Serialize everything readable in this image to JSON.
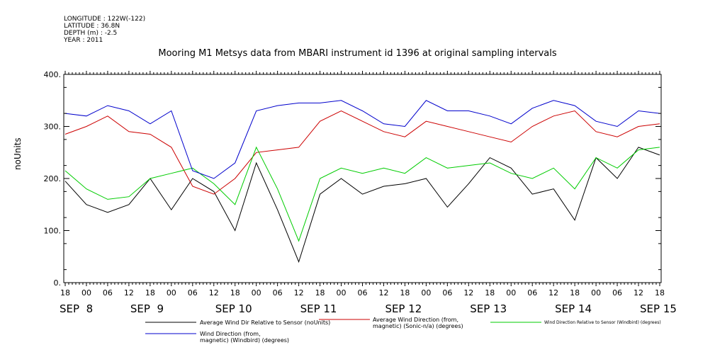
{
  "header": {
    "longitude": "LONGITUDE : 122W(-122)",
    "latitude": "LATITUDE : 36.8N",
    "depth": "DEPTH (m) : -2.5",
    "year": "YEAR : 2011"
  },
  "chart_data": {
    "type": "line",
    "title": "Mooring M1 Metsys data from MBARI instrument id 1396 at original sampling intervals",
    "ylabel": "noUnits",
    "ylim": [
      0,
      400
    ],
    "yticks": [
      0,
      100,
      200,
      300,
      400
    ],
    "ytick_labels": [
      "0.",
      "100.",
      "200.",
      "300.",
      "400."
    ],
    "xlim_hours": [
      0,
      168
    ],
    "hour_tick_labels": [
      "18",
      "00",
      "06",
      "12",
      "18",
      "00",
      "06",
      "12",
      "18",
      "00",
      "06",
      "12",
      "18",
      "00",
      "06",
      "12",
      "18",
      "00",
      "06",
      "12",
      "18",
      "00",
      "06",
      "12",
      "18",
      "00",
      "06",
      "12",
      "18"
    ],
    "day_labels": [
      "SEP  8",
      "SEP  9",
      "SEP 10",
      "SEP 11",
      "SEP 12",
      "SEP 13",
      "SEP 14",
      "SEP 15"
    ],
    "grid": false,
    "legend_position": "bottom",
    "series": [
      {
        "name": "Average Wind Dir Relative to Sensor (noUnits)",
        "color": "#000000",
        "x": [
          0,
          6,
          12,
          18,
          24,
          30,
          36,
          42,
          48,
          54,
          60,
          66,
          72,
          78,
          84,
          90,
          96,
          102,
          108,
          114,
          120,
          126,
          132,
          138,
          144,
          150,
          156,
          162,
          168
        ],
        "y": [
          195,
          150,
          135,
          150,
          200,
          140,
          200,
          175,
          100,
          230,
          140,
          40,
          170,
          200,
          170,
          185,
          190,
          200,
          145,
          190,
          240,
          220,
          170,
          180,
          120,
          240,
          200,
          260,
          245
        ]
      },
      {
        "name": "Average Wind Direction (from, magnetic) (Sonic-n/a) (degrees)",
        "color": "#cc0000",
        "x": [
          0,
          6,
          12,
          18,
          24,
          30,
          36,
          42,
          48,
          54,
          60,
          66,
          72,
          78,
          84,
          90,
          96,
          102,
          108,
          114,
          120,
          126,
          132,
          138,
          144,
          150,
          156,
          162,
          168
        ],
        "y": [
          285,
          300,
          320,
          290,
          285,
          260,
          185,
          170,
          200,
          250,
          255,
          260,
          310,
          330,
          310,
          290,
          280,
          310,
          300,
          290,
          280,
          270,
          300,
          320,
          330,
          290,
          280,
          300,
          305
        ]
      },
      {
        "name": "Wind Direction Relative to Sensor (Windbird) (degrees)",
        "color": "#00cc00",
        "x": [
          0,
          6,
          12,
          18,
          24,
          30,
          36,
          42,
          48,
          54,
          60,
          66,
          72,
          78,
          84,
          90,
          96,
          102,
          108,
          114,
          120,
          126,
          132,
          138,
          144,
          150,
          156,
          162,
          168
        ],
        "y": [
          215,
          180,
          160,
          165,
          200,
          210,
          220,
          190,
          150,
          260,
          180,
          80,
          200,
          220,
          210,
          220,
          210,
          240,
          220,
          225,
          230,
          210,
          200,
          220,
          180,
          240,
          220,
          255,
          260
        ]
      },
      {
        "name": "Wind Direction (from, magnetic) (Windbird) (degrees)",
        "color": "#0000cc",
        "x": [
          0,
          6,
          12,
          18,
          24,
          30,
          36,
          42,
          48,
          54,
          60,
          66,
          72,
          78,
          84,
          90,
          96,
          102,
          108,
          114,
          120,
          126,
          132,
          138,
          144,
          150,
          156,
          162,
          168
        ],
        "y": [
          325,
          320,
          340,
          330,
          305,
          330,
          215,
          200,
          230,
          330,
          340,
          345,
          345,
          350,
          330,
          305,
          300,
          350,
          330,
          330,
          320,
          305,
          335,
          350,
          340,
          310,
          300,
          330,
          325
        ]
      }
    ],
    "legend": [
      {
        "label_lines": [
          "Average Wind Dir Relative to Sensor (noUnits)"
        ],
        "color": "#000000"
      },
      {
        "label_lines": [
          "Average Wind Direction (from,",
          "magnetic) (Sonic-n/a) (degrees)"
        ],
        "color": "#cc0000"
      },
      {
        "label_lines": [
          "Wind Direction Relative to Sensor (Windbird) (degrees)"
        ],
        "color": "#00cc00"
      },
      {
        "label_lines": [
          "Wind Direction (from,",
          "magnetic) (Windbird) (degrees)"
        ],
        "color": "#0000cc"
      }
    ]
  }
}
